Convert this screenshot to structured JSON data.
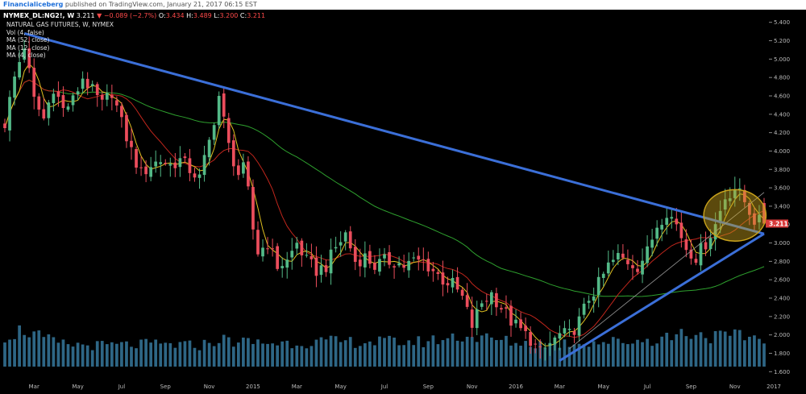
{
  "header": {
    "author": "Financialiceberg",
    "published_text": "published on TradingView.com, January 21, 2017 06:15 EST"
  },
  "info_bar": {
    "symbol": "NYMEX_DL:NG2!, W",
    "last": "3.211",
    "change": "▼ −0.089 (−2.7%)",
    "open_label": "O:",
    "open": "3.434",
    "high_label": "H:",
    "high": "3.489",
    "low_label": "L:",
    "low": "3.200",
    "close_label": "C:",
    "close": "3.211"
  },
  "indicators": [
    "NATURAL GAS FUTURES, W, NYMEX",
    "Vol (4, false)",
    "MA (52, close)",
    "MA (12, close)",
    "MA (4, close)"
  ],
  "colors": {
    "background": "#000000",
    "up_candle": "#53b987",
    "down_candle": "#eb4d5c",
    "trendline": "#3b6fd8",
    "ma52": "#2ea02e",
    "ma12": "#c0261c",
    "ma4": "#e0c020",
    "volume": "#3a7fa6",
    "price_tag": "#d73a3a",
    "highlight_circle": "#c9a21c"
  },
  "chart_data": {
    "type": "candlestick",
    "title": "NATURAL GAS FUTURES, W, NYMEX",
    "y_axis_ticks": [
      "5.400",
      "5.200",
      "5.000",
      "4.800",
      "4.600",
      "4.400",
      "4.200",
      "4.000",
      "3.800",
      "3.600",
      "3.400",
      "3.200",
      "3.000",
      "2.800",
      "2.600",
      "2.400",
      "2.200",
      "2.000",
      "1.800",
      "1.600"
    ],
    "ylim": [
      1.55,
      5.45
    ],
    "x_axis_labels": [
      "Mar",
      "May",
      "Jul",
      "Sep",
      "Nov",
      "2015",
      "Mar",
      "May",
      "Jul",
      "Sep",
      "Nov",
      "2016",
      "Mar",
      "May",
      "Jul",
      "Sep",
      "Nov",
      "2017"
    ],
    "x_domain": [
      0,
      156
    ],
    "x_label_positions": [
      6,
      15,
      24,
      33,
      42,
      51,
      60,
      69,
      78,
      87,
      96,
      105,
      114,
      123,
      132,
      141,
      150,
      158
    ],
    "last_price_tag": "3.211",
    "close_anchors": [
      [
        0,
        4.3
      ],
      [
        2,
        4.8
      ],
      [
        4,
        5.15
      ],
      [
        6,
        4.55
      ],
      [
        8,
        4.35
      ],
      [
        10,
        4.7
      ],
      [
        12,
        4.45
      ],
      [
        14,
        4.55
      ],
      [
        16,
        4.8
      ],
      [
        18,
        4.65
      ],
      [
        20,
        4.5
      ],
      [
        22,
        4.65
      ],
      [
        24,
        4.3
      ],
      [
        26,
        4.0
      ],
      [
        28,
        3.75
      ],
      [
        30,
        3.85
      ],
      [
        32,
        3.9
      ],
      [
        34,
        3.85
      ],
      [
        36,
        3.9
      ],
      [
        38,
        3.8
      ],
      [
        40,
        3.7
      ],
      [
        42,
        4.1
      ],
      [
        44,
        4.6
      ],
      [
        46,
        4.05
      ],
      [
        47,
        3.9
      ],
      [
        48,
        3.75
      ],
      [
        49,
        3.8
      ],
      [
        50,
        3.55
      ],
      [
        51,
        3.15
      ],
      [
        52,
        2.9
      ],
      [
        54,
        3.0
      ],
      [
        56,
        2.75
      ],
      [
        58,
        2.8
      ],
      [
        60,
        3.0
      ],
      [
        62,
        2.8
      ],
      [
        64,
        2.7
      ],
      [
        66,
        2.75
      ],
      [
        68,
        2.95
      ],
      [
        70,
        3.1
      ],
      [
        72,
        2.8
      ],
      [
        74,
        2.85
      ],
      [
        76,
        2.75
      ],
      [
        78,
        2.8
      ],
      [
        80,
        2.8
      ],
      [
        82,
        2.75
      ],
      [
        84,
        2.8
      ],
      [
        86,
        2.8
      ],
      [
        88,
        2.7
      ],
      [
        90,
        2.6
      ],
      [
        92,
        2.55
      ],
      [
        94,
        2.4
      ],
      [
        96,
        2.1
      ],
      [
        98,
        2.35
      ],
      [
        100,
        2.45
      ],
      [
        102,
        2.3
      ],
      [
        104,
        2.15
      ],
      [
        106,
        2.05
      ],
      [
        108,
        1.95
      ],
      [
        110,
        1.8
      ],
      [
        112,
        1.9
      ],
      [
        114,
        2.0
      ],
      [
        116,
        2.0
      ],
      [
        118,
        2.15
      ],
      [
        120,
        2.4
      ],
      [
        122,
        2.55
      ],
      [
        124,
        2.75
      ],
      [
        126,
        2.85
      ],
      [
        128,
        2.8
      ],
      [
        130,
        2.75
      ],
      [
        132,
        2.9
      ],
      [
        134,
        3.2
      ],
      [
        136,
        3.35
      ],
      [
        138,
        3.2
      ],
      [
        140,
        2.95
      ],
      [
        142,
        2.85
      ],
      [
        144,
        3.0
      ],
      [
        146,
        3.2
      ],
      [
        148,
        3.5
      ],
      [
        150,
        3.6
      ],
      [
        152,
        3.45
      ],
      [
        154,
        3.25
      ],
      [
        156,
        3.211
      ]
    ],
    "vol_anchors": [
      [
        0,
        0.25
      ],
      [
        4,
        0.3
      ],
      [
        8,
        0.22
      ],
      [
        12,
        0.18
      ],
      [
        20,
        0.17
      ],
      [
        30,
        0.18
      ],
      [
        40,
        0.17
      ],
      [
        44,
        0.22
      ],
      [
        48,
        0.2
      ],
      [
        56,
        0.19
      ],
      [
        66,
        0.2
      ],
      [
        76,
        0.2
      ],
      [
        86,
        0.2
      ],
      [
        94,
        0.25
      ],
      [
        100,
        0.22
      ],
      [
        106,
        0.19
      ],
      [
        112,
        0.18
      ],
      [
        118,
        0.2
      ],
      [
        126,
        0.2
      ],
      [
        134,
        0.22
      ],
      [
        140,
        0.28
      ],
      [
        146,
        0.24
      ],
      [
        152,
        0.24
      ],
      [
        156,
        0.24
      ]
    ],
    "series": [
      {
        "name": "Vol (4, false)",
        "kind": "volume"
      },
      {
        "name": "MA (52, close)",
        "period": 52
      },
      {
        "name": "MA (12, close)",
        "period": 12
      },
      {
        "name": "MA (4, close)",
        "period": 4
      }
    ],
    "trendlines": [
      {
        "from": [
          4,
          5.28
        ],
        "to": [
          156,
          3.1
        ]
      },
      {
        "from": [
          114,
          1.72
        ],
        "to": [
          156,
          3.1
        ]
      },
      {
        "from": [
          116,
          1.85
        ],
        "to": [
          156,
          3.55
        ],
        "thin": true
      }
    ],
    "highlight": {
      "center": [
        150,
        3.3
      ],
      "radius_x": 6.4,
      "radius_y": 0.28
    },
    "grid": false
  }
}
